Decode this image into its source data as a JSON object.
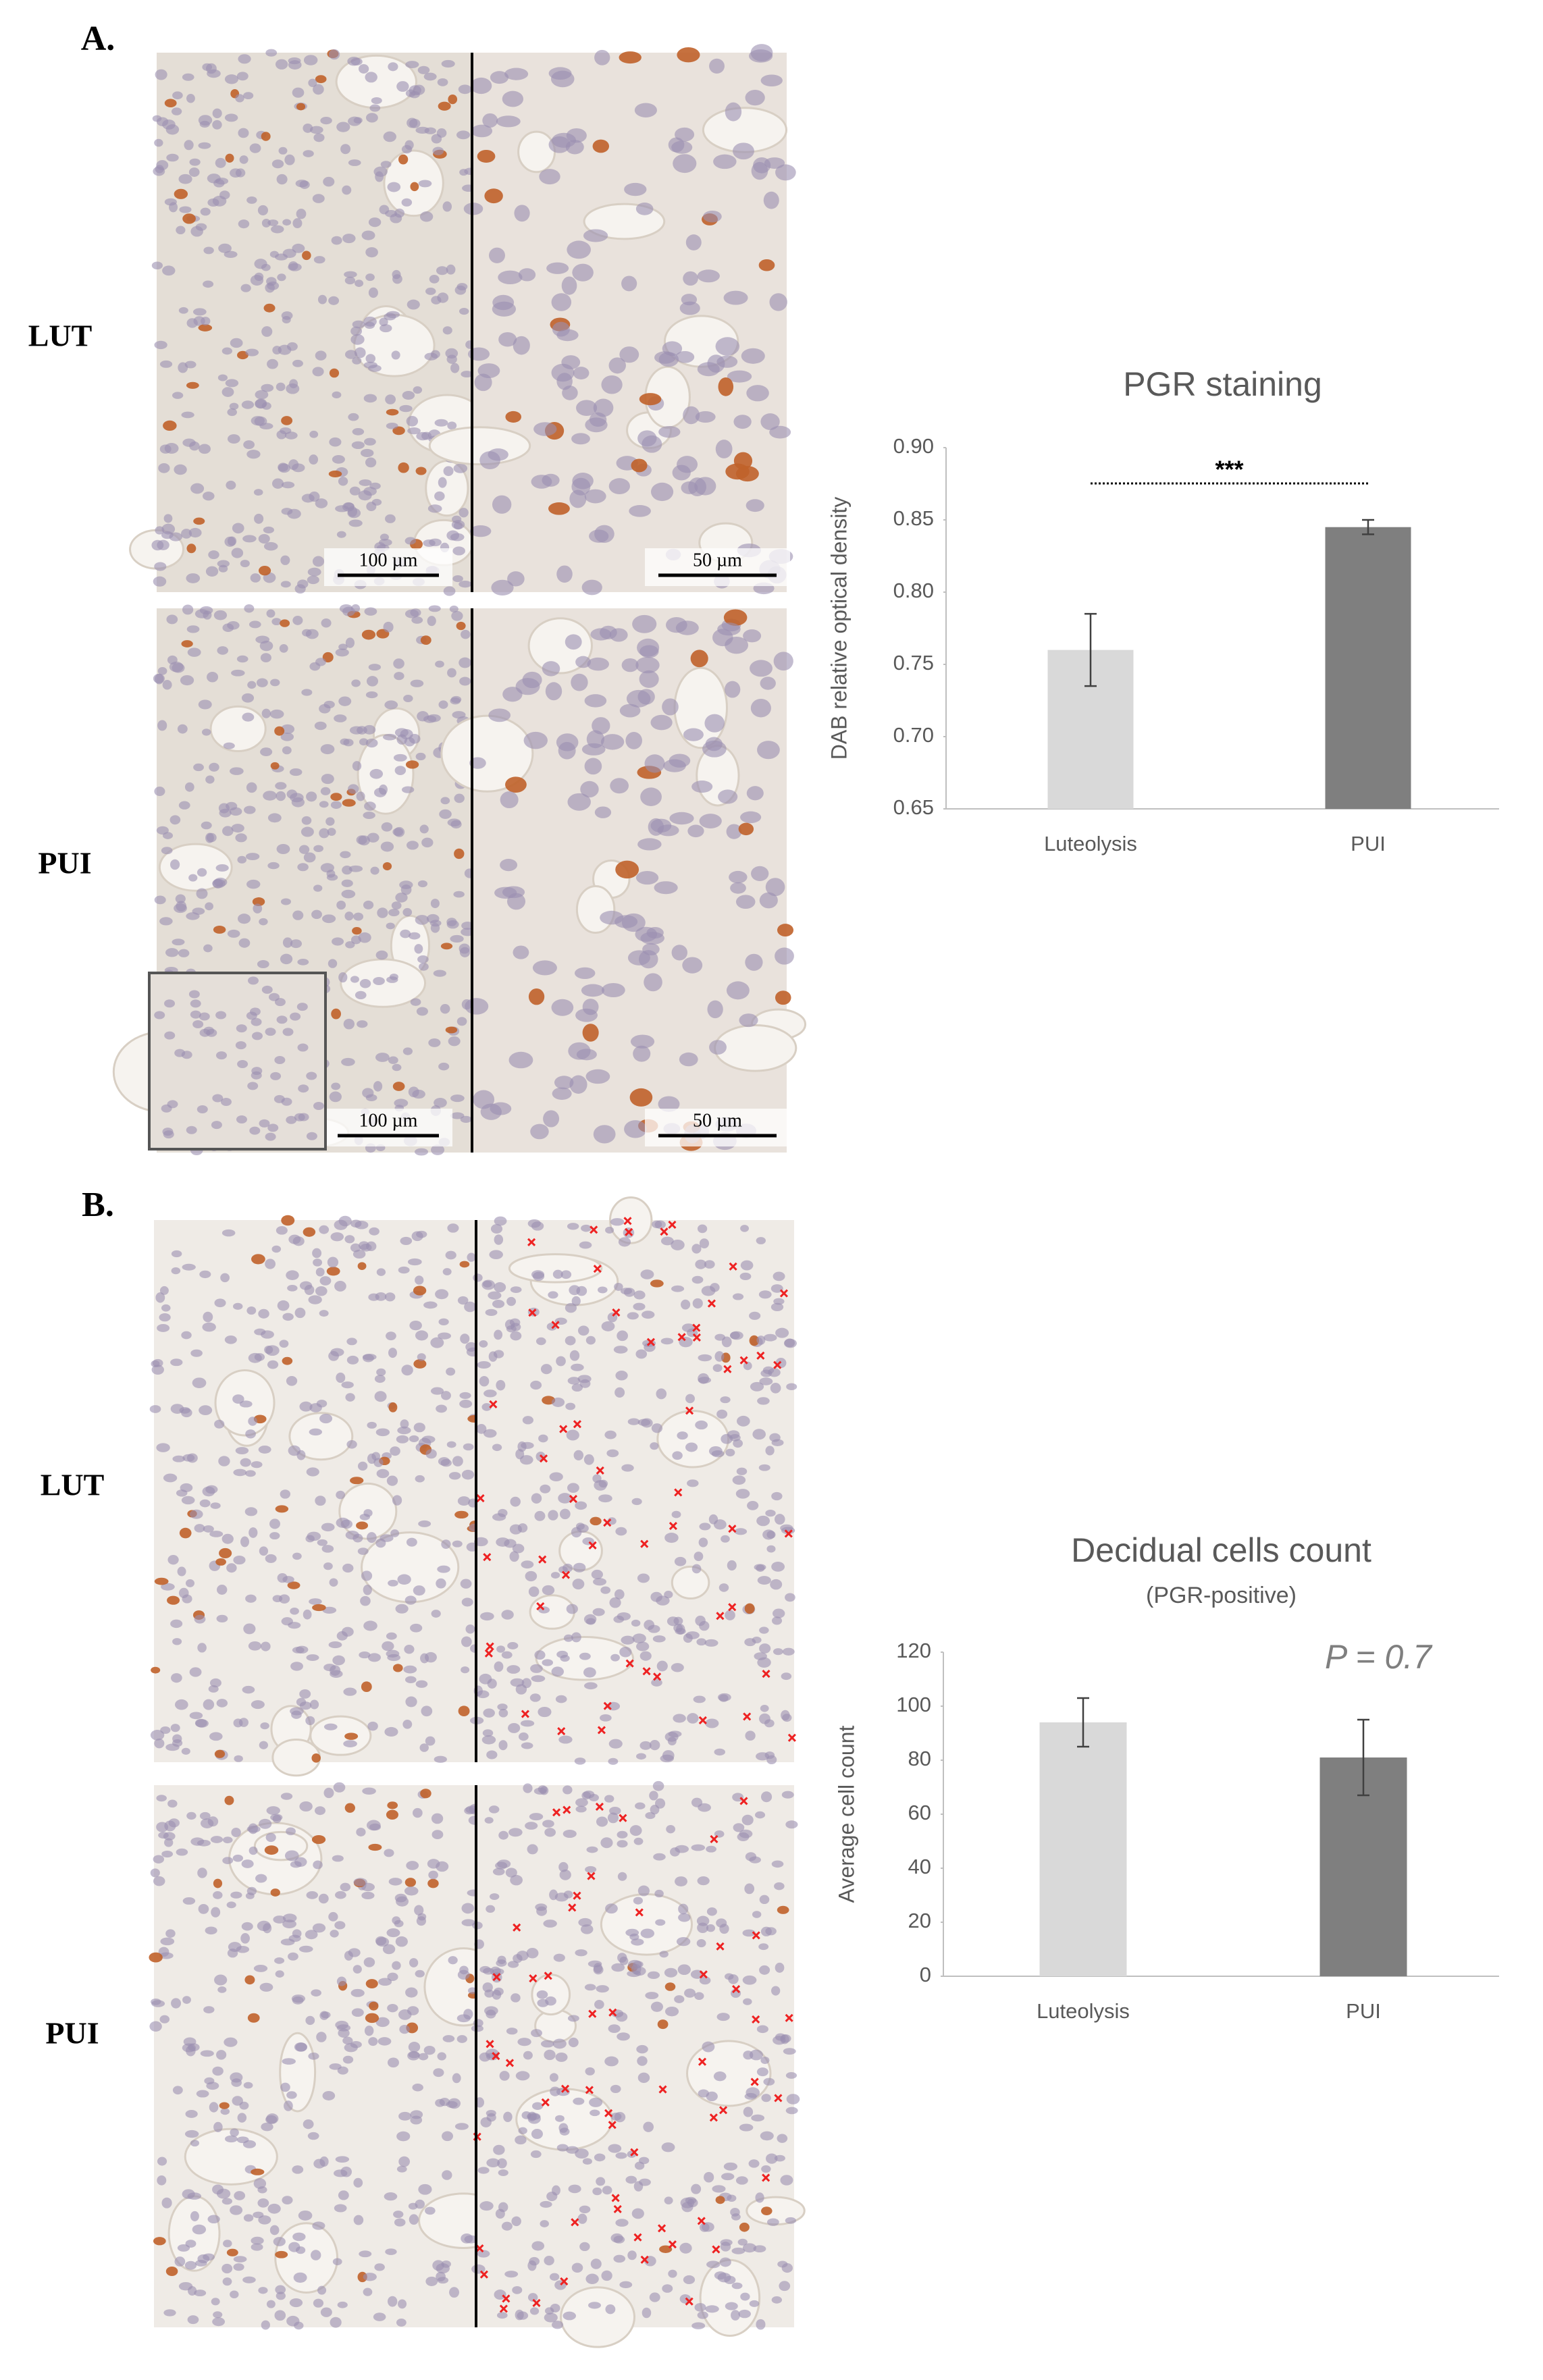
{
  "panels": [
    {
      "label": "A.",
      "rows": [
        "LUT",
        "PUI"
      ],
      "scale_bars": [
        [
          "100 µm",
          "50 µm"
        ],
        [
          "100 µm",
          "50 µm"
        ]
      ]
    },
    {
      "label": "B.",
      "rows": [
        "LUT",
        "PUI"
      ]
    }
  ],
  "chart_data": [
    {
      "type": "bar",
      "title": "PGR staining",
      "ylabel": "DAB relative optical density",
      "categories": [
        "Luteolysis",
        "PUI"
      ],
      "series": [
        {
          "values": [
            0.76,
            0.845
          ],
          "errors": [
            0.025,
            0.005
          ],
          "colors": [
            "#d9d9d9",
            "#7f7f7f"
          ]
        }
      ],
      "ylim": [
        0.65,
        0.9
      ],
      "yticks": [
        0.65,
        {
          "value": 0.7,
          "label": "0.70"
        },
        0.75,
        {
          "value": 0.8,
          "label": "0.80"
        },
        0.85,
        {
          "value": 0.9,
          "label": "0.90"
        }
      ],
      "annotation": "***"
    },
    {
      "type": "bar",
      "title": "Decidual cells count",
      "subtitle": "(PGR-positive)",
      "ylabel": "Average cell count",
      "categories": [
        "Luteolysis",
        "PUI"
      ],
      "series": [
        {
          "values": [
            94,
            81
          ],
          "errors": [
            9,
            14
          ],
          "colors": [
            "#d9d9d9",
            "#7f7f7f"
          ]
        }
      ],
      "ylim": [
        0,
        120
      ],
      "yticks": [
        0,
        20,
        40,
        60,
        80,
        100,
        120
      ],
      "annotation": "P = 0.7"
    }
  ]
}
